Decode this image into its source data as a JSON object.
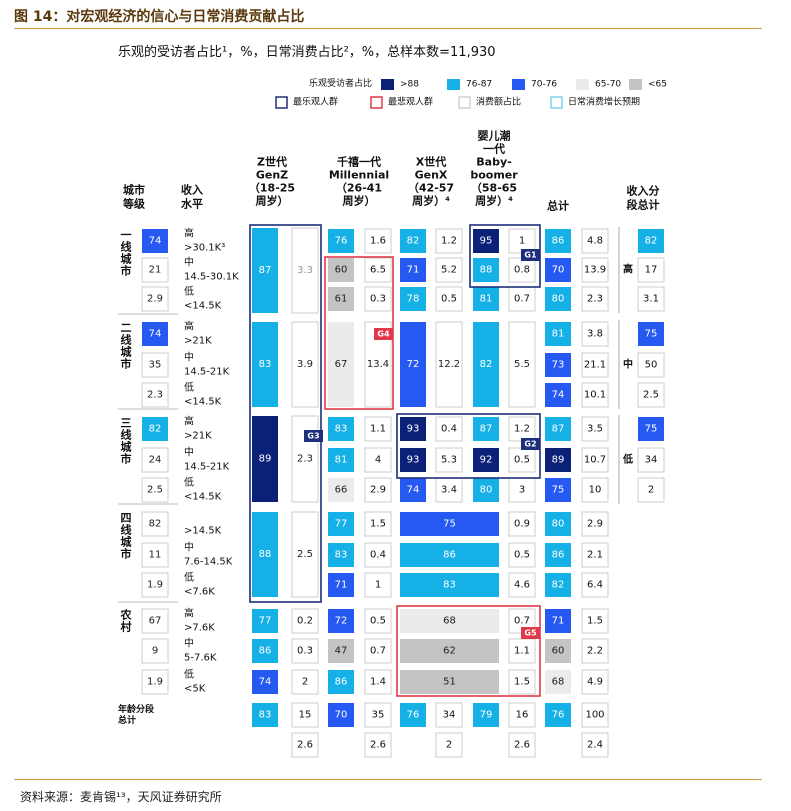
{
  "figure_title": "图 14：对宏观经济的信心与日常消费贡献占比",
  "source": "资料来源：麦肯锡¹³，天风证券研究所",
  "colors": {
    "gt88": "#0b2077",
    "c76_87": "#14b0e6",
    "c70_76": "#2659f2",
    "c65_70": "#ebebeb",
    "lt65": "#c4c4c4",
    "box_optimist": "#1d2e7a",
    "box_pessimist": "#e0394a",
    "box_share": "#d0d0d0",
    "box_growth": "#7fd3f2",
    "grid": "#cccccc",
    "orange_rule": "#d59a4a"
  },
  "chart_data": {
    "type": "table",
    "title": "乐观的受访者占比¹，%，日常消费占比²，%，总样本数=11,930",
    "legend": {
      "color_title": "乐观受访者占比",
      "color_items": [
        {
          "label": ">88",
          "color": "#0b2077"
        },
        {
          "label": "76-87",
          "color": "#14b0e6"
        },
        {
          "label": "70-76",
          "color": "#2659f2"
        },
        {
          "label": "65-70",
          "color": "#ebebeb"
        },
        {
          "label": "<65",
          "color": "#c4c4c4"
        }
      ],
      "box_items": [
        {
          "label": "最乐观人群",
          "color": "#1d2e7a"
        },
        {
          "label": "最悲观人群",
          "color": "#e0394a"
        },
        {
          "label": "消费额占比",
          "color": "#d0d0d0"
        },
        {
          "label": "日常消费增长预期",
          "color": "#7fd3f2"
        }
      ]
    },
    "headers": {
      "city": "城市\n等级",
      "income": "收入\n水平",
      "generations": [
        "Z世代\nGenZ\n（18-25\n周岁）",
        "千禧一代\nMillennial\n（26-41\n周岁）",
        "X世代\nGenX\n（42-57\n周岁）⁴",
        "婴儿潮\n一代\nBaby-\nboomer\n（58-65\n周岁）⁴"
      ],
      "total": "总计",
      "income_total": "收入分\n段总计"
    },
    "city_groups": [
      {
        "name": "一\n线\n城\n市",
        "rows": [
          {
            "level": "高",
            "range": ">30.1K³",
            "opt": 74,
            "cells": [
              null,
              null,
              [
                76,
                1.6
              ],
              [
                82,
                1.2
              ],
              [
                95,
                1.0
              ]
            ],
            "total": [
              86,
              4.8
            ]
          },
          {
            "level": "中",
            "range": "14.5-30.1K",
            "opt": 21,
            "cells": [
              [
                87,
                3.3
              ],
              null,
              [
                60,
                6.5
              ],
              [
                71,
                5.2
              ],
              [
                88,
                0.8
              ]
            ],
            "total": [
              70,
              13.9
            ]
          },
          {
            "level": "低",
            "range": "<14.5K",
            "opt": 2.9,
            "cells": [
              null,
              null,
              [
                61,
                0.3
              ],
              [
                78,
                0.5
              ],
              [
                81,
                0.7
              ]
            ],
            "total": [
              80,
              2.3
            ]
          }
        ]
      },
      {
        "name": "二\n线\n城\n市",
        "rows": [
          {
            "level": "高",
            "range": ">21K",
            "opt": 74,
            "cells": [],
            "total": [
              81,
              3.8
            ]
          },
          {
            "level": "中",
            "range": "14.5-21K",
            "opt": 35,
            "cells": [
              [
                83,
                3.9
              ],
              null,
              [
                67,
                13.4
              ],
              [
                72,
                12.2
              ],
              [
                82,
                5.5
              ]
            ],
            "total": [
              73,
              21.1
            ]
          },
          {
            "level": "低",
            "range": "<14.5K",
            "opt": 2.3,
            "cells": [],
            "total": [
              74,
              10.1
            ]
          }
        ]
      },
      {
        "name": "三\n线\n城\n市",
        "rows": [
          {
            "level": "高",
            "range": ">21K",
            "opt": 82,
            "cells": [
              null,
              null,
              [
                83,
                1.1
              ],
              [
                93,
                0.4
              ],
              [
                87,
                1.2
              ]
            ],
            "total": [
              87,
              3.5
            ]
          },
          {
            "level": "中",
            "range": "14.5-21K",
            "opt": 24,
            "cells": [
              [
                89,
                2.3
              ],
              null,
              [
                81,
                4.0
              ],
              [
                93,
                5.3
              ],
              [
                92,
                0.5
              ]
            ],
            "total": [
              89,
              10.7
            ]
          },
          {
            "level": "低",
            "range": "<14.5K",
            "opt": 2.5,
            "cells": [
              null,
              null,
              [
                66,
                2.9
              ],
              [
                74,
                3.4
              ],
              [
                80,
                3.0
              ]
            ],
            "total": [
              75,
              10.0
            ]
          }
        ]
      },
      {
        "name": "四\n线\n城\n市",
        "rows": [
          {
            "level": "",
            "range": ">14.5K",
            "opt": 82,
            "cells": [
              null,
              null,
              [
                77,
                1.5
              ],
              [
                75,
                0.9
              ]
            ],
            "total": [
              80,
              2.9
            ]
          },
          {
            "level": "中",
            "range": "7.6-14.5K",
            "opt": 11,
            "cells": [
              [
                88,
                2.5
              ],
              null,
              [
                83,
                0.4
              ],
              [
                86,
                0.5
              ]
            ],
            "total": [
              86,
              2.1
            ]
          },
          {
            "level": "低",
            "range": "<7.6K",
            "opt": 1.9,
            "cells": [
              null,
              null,
              [
                71,
                1.0
              ],
              [
                83,
                4.6
              ]
            ],
            "total": [
              82,
              6.4
            ]
          }
        ]
      },
      {
        "name": "农\n村",
        "rows": [
          {
            "level": "高",
            "range": ">7.6K",
            "opt": 67,
            "cells": [
              [
                77,
                0.2
              ],
              [
                72,
                0.5
              ],
              [
                68,
                0.7
              ]
            ],
            "total": [
              71,
              1.5
            ]
          },
          {
            "level": "中",
            "range": "5-7.6K",
            "opt": 9,
            "cells": [
              [
                86,
                0.3
              ],
              [
                47,
                0.7
              ],
              [
                62,
                1.1
              ]
            ],
            "total": [
              60,
              2.2
            ]
          },
          {
            "level": "低",
            "range": "<5K",
            "opt": 1.9,
            "cells": [
              [
                74,
                2.0
              ],
              [
                86,
                1.4
              ],
              [
                51,
                1.5
              ]
            ],
            "total": [
              68,
              4.9
            ]
          }
        ]
      }
    ],
    "income_totals": [
      {
        "label": "高",
        "opt": 82,
        "share": 17,
        "growth": 3.1
      },
      {
        "label": "中",
        "opt": 75,
        "share": 50,
        "growth": 2.5
      },
      {
        "label": "低",
        "opt": 75,
        "share": 34,
        "growth": 2.0
      }
    ],
    "age_totals": {
      "label": "年龄分段\n总计",
      "values": [
        [
          83,
          15
        ],
        [
          70,
          35
        ],
        [
          76,
          34
        ],
        [
          79,
          16
        ],
        [
          76,
          100
        ]
      ],
      "growth": [
        2.6,
        2.6,
        2.0,
        2.6,
        2.4
      ]
    },
    "merged_cells": [
      {
        "gen": 0,
        "opt": 87,
        "share": 3.3
      },
      {
        "gen": 0,
        "opt": 83,
        "share": 3.9
      },
      {
        "gen": 0,
        "opt": 89,
        "share": 2.3
      },
      {
        "gen": 0,
        "opt": 88,
        "share": 2.5
      },
      {
        "gen": 1,
        "opt": 67,
        "share": 13.4
      },
      {
        "gen": 2,
        "opt": 72,
        "share": 12.2
      },
      {
        "gen": 3,
        "opt": 82,
        "share": 5.5
      },
      {
        "gen": 2,
        "opt": 75,
        "share": 0.9
      },
      {
        "gen": 2,
        "opt": 86,
        "share": 0.5
      },
      {
        "gen": 2,
        "opt": 83,
        "share": 4.6
      },
      {
        "gen": 2,
        "opt": 68,
        "share": 0.7
      },
      {
        "gen": 2,
        "opt": 62,
        "share": 1.1
      },
      {
        "gen": 2,
        "opt": 51,
        "share": 1.5
      }
    ],
    "group_labels": [
      "G1",
      "G2",
      "G3",
      "G4",
      "G5"
    ]
  }
}
